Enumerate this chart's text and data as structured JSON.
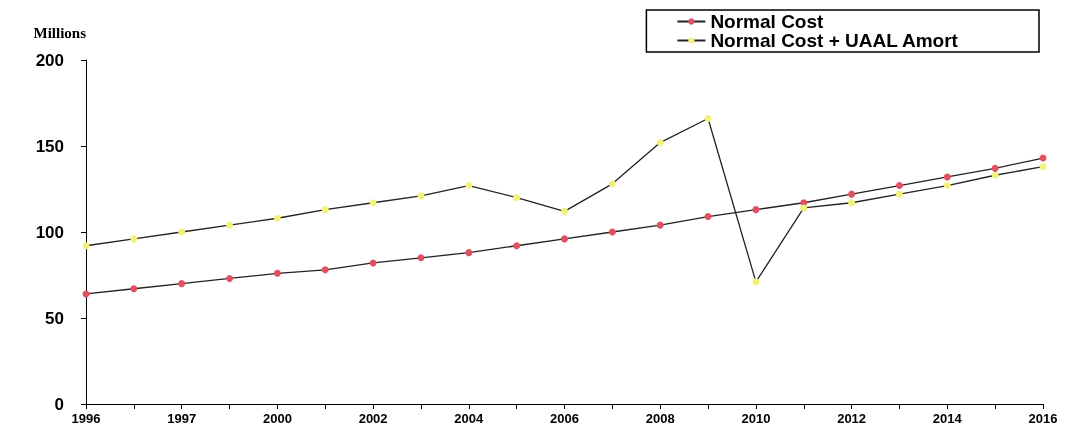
{
  "chart_data": {
    "type": "line",
    "ylabel": "Millions",
    "categories": [
      "1996",
      null,
      "1997",
      null,
      "2000",
      null,
      "2002",
      null,
      "2004",
      null,
      "2006",
      null,
      "2008",
      null,
      "2010",
      null,
      "2012",
      null,
      "2014",
      null,
      "2016"
    ],
    "series": [
      {
        "name": "Normal Cost",
        "color": "#e05060",
        "values": [
          64,
          67,
          70,
          73,
          76,
          78,
          82,
          85,
          88,
          92,
          96,
          100,
          104,
          109,
          113,
          117,
          122,
          127,
          132,
          137,
          143
        ]
      },
      {
        "name": "Normal Cost + UAAL Amort",
        "color": "#f2f27a",
        "values": [
          92,
          96,
          100,
          104,
          108,
          113,
          117,
          121,
          127,
          120,
          112,
          128,
          152,
          166,
          71,
          114,
          117,
          122,
          127,
          133,
          138
        ]
      }
    ],
    "ylim": [
      0,
      200
    ],
    "yticks": [
      0,
      50,
      100,
      150,
      200
    ],
    "grid": false,
    "legend": "top right",
    "marker": "circle",
    "line_style": "solid"
  }
}
